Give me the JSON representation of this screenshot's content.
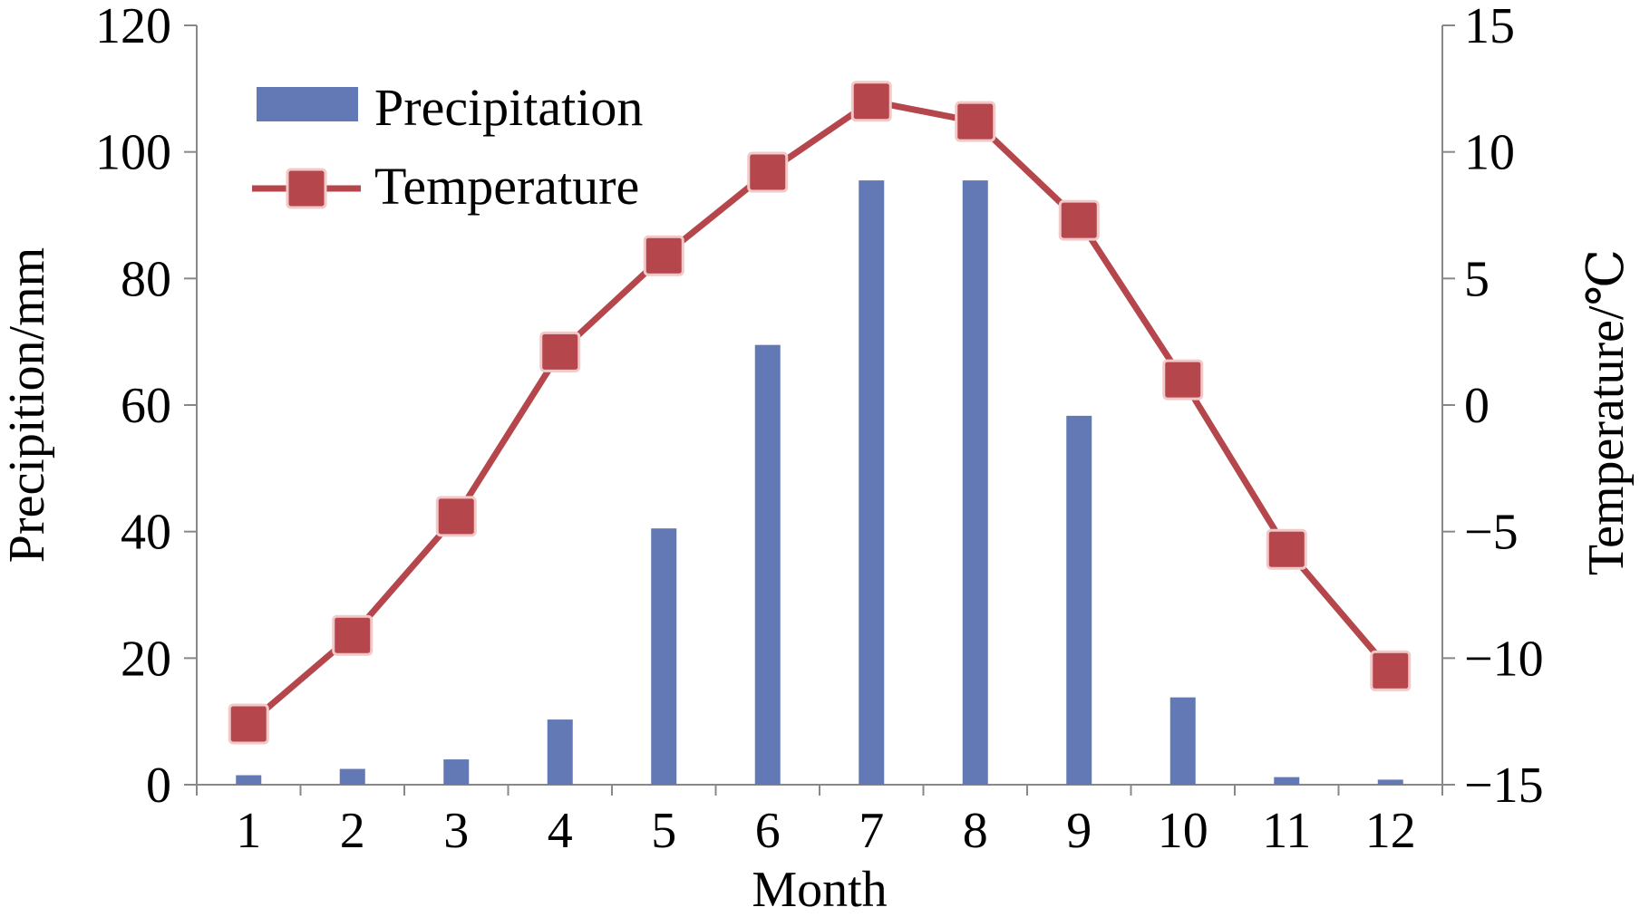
{
  "chart_data": {
    "type": "bar+line",
    "title": "",
    "categories": [
      "1",
      "2",
      "3",
      "4",
      "5",
      "6",
      "7",
      "8",
      "9",
      "10",
      "11",
      "12"
    ],
    "xlabel": "Month",
    "ylabel_left": "Precipition/mm",
    "ylabel_right": "Temperature/℃",
    "ylim_left": [
      0,
      120
    ],
    "yticks_left": [
      "0",
      "20",
      "40",
      "60",
      "80",
      "100",
      "120"
    ],
    "ylim_right": [
      -15,
      15
    ],
    "yticks_right": [
      "−15",
      "−10",
      "−5",
      "0",
      "5",
      "10",
      "15"
    ],
    "series": [
      {
        "name": "Precipitation",
        "type": "bar",
        "axis": "left",
        "color": "#6379b5",
        "values": [
          1.5,
          2.5,
          4,
          10.3,
          40.5,
          69.5,
          95.5,
          95.5,
          58.3,
          13.8,
          1.2,
          0.8
        ]
      },
      {
        "name": "Temperature",
        "type": "line",
        "axis": "right",
        "color": "#b5474c",
        "values": [
          -12.6,
          -9.1,
          -4.4,
          2.1,
          5.9,
          9.2,
          12.0,
          11.2,
          7.3,
          1.0,
          -5.7,
          -10.5
        ]
      }
    ],
    "legend_position": "top-left",
    "grid": false,
    "axis_color": "#888888"
  }
}
